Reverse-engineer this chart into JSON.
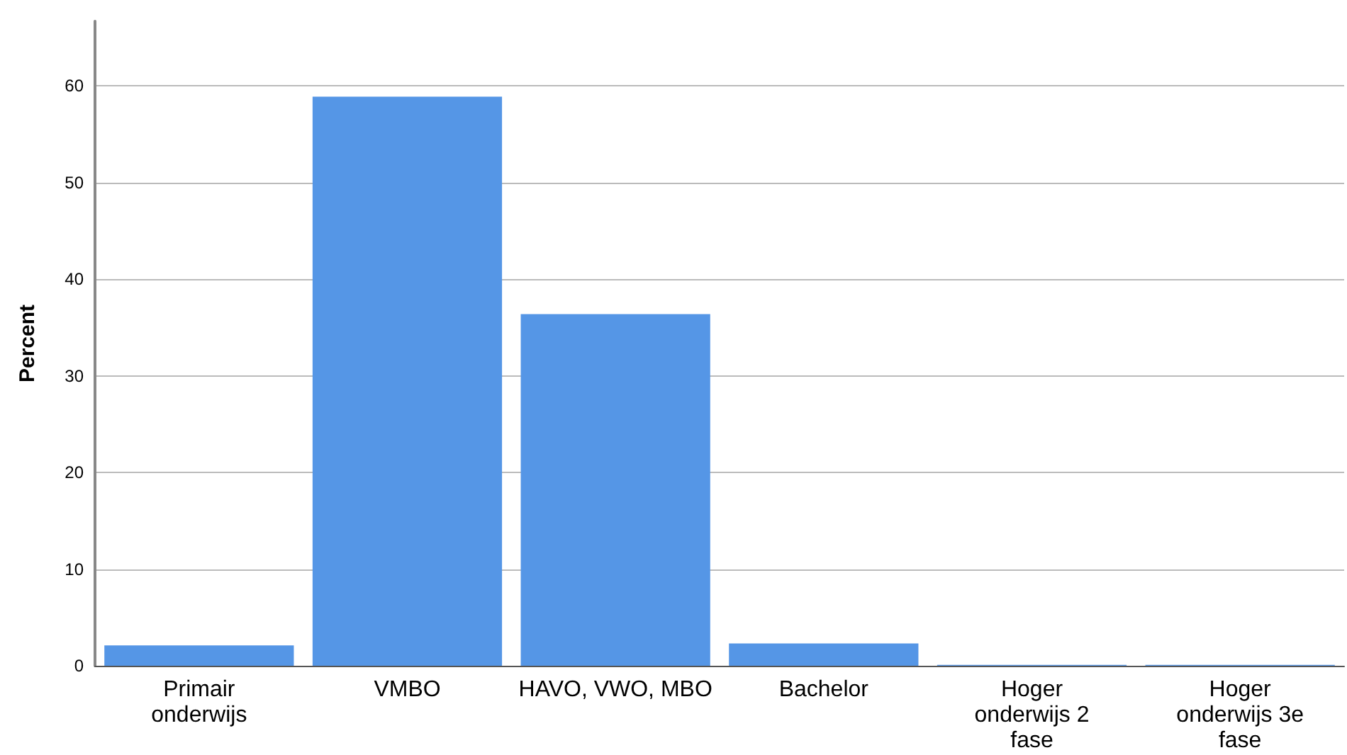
{
  "chart_data": {
    "type": "bar",
    "ylabel": "Percent",
    "categories": [
      "Primair onderwijs",
      "VMBO",
      "HAVO, VWO, MBO",
      "Bachelor",
      "Hoger onderwijs 2 fase",
      "Hoger onderwijs 3e fase"
    ],
    "values": [
      2.1,
      58.9,
      36.4,
      2.3,
      0.1,
      0.1
    ],
    "color": "#5596e6",
    "ylim": [
      0,
      66.7
    ],
    "yticks": [
      0,
      10,
      20,
      30,
      40,
      50,
      60
    ],
    "grid": "y"
  }
}
